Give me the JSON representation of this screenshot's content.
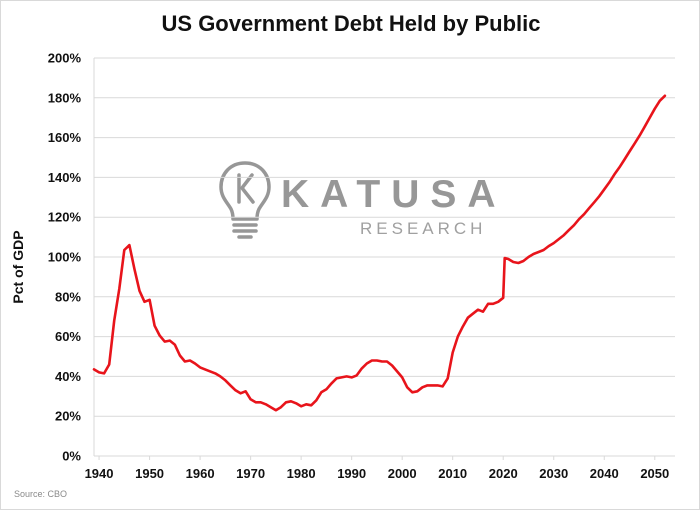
{
  "chart_data": {
    "type": "line",
    "title": "US Government Debt Held by Public",
    "ylabel": "Pct of GDP",
    "xlabel": "",
    "source": "Source: CBO",
    "xlim": [
      1939,
      2054
    ],
    "ylim": [
      0,
      200
    ],
    "x_ticks": [
      1940,
      1950,
      1960,
      1970,
      1980,
      1990,
      2000,
      2010,
      2020,
      2030,
      2040,
      2050
    ],
    "y_ticks": [
      {
        "value": 0,
        "label": "0%"
      },
      {
        "value": 20,
        "label": "20%"
      },
      {
        "value": 40,
        "label": "40%"
      },
      {
        "value": 60,
        "label": "60%"
      },
      {
        "value": 80,
        "label": "80%"
      },
      {
        "value": 100,
        "label": "100%"
      },
      {
        "value": 120,
        "label": "120%"
      },
      {
        "value": 140,
        "label": "140%"
      },
      {
        "value": 160,
        "label": "160%"
      },
      {
        "value": 180,
        "label": "180%"
      },
      {
        "value": 200,
        "label": "200%"
      }
    ],
    "grid": true,
    "legend": "none",
    "series": [
      {
        "color": "#e8141b",
        "points": [
          [
            1939,
            43.5
          ],
          [
            1940,
            42
          ],
          [
            1941,
            41.5
          ],
          [
            1942,
            46
          ],
          [
            1943,
            68
          ],
          [
            1944,
            84
          ],
          [
            1945,
            103.5
          ],
          [
            1946,
            106
          ],
          [
            1947,
            94
          ],
          [
            1948,
            83
          ],
          [
            1949,
            77.5
          ],
          [
            1950,
            78.5
          ],
          [
            1951,
            65.5
          ],
          [
            1952,
            60.5
          ],
          [
            1953,
            57.5
          ],
          [
            1954,
            58
          ],
          [
            1955,
            56
          ],
          [
            1956,
            50.5
          ],
          [
            1957,
            47.5
          ],
          [
            1958,
            48
          ],
          [
            1959,
            46.5
          ],
          [
            1960,
            44.5
          ],
          [
            1961,
            43.5
          ],
          [
            1962,
            42.5
          ],
          [
            1963,
            41.5
          ],
          [
            1964,
            40
          ],
          [
            1965,
            38
          ],
          [
            1966,
            35.5
          ],
          [
            1967,
            33
          ],
          [
            1968,
            31.5
          ],
          [
            1969,
            32.5
          ],
          [
            1970,
            28.5
          ],
          [
            1971,
            27
          ],
          [
            1972,
            27
          ],
          [
            1973,
            26
          ],
          [
            1974,
            24.5
          ],
          [
            1975,
            23
          ],
          [
            1976,
            24.5
          ],
          [
            1977,
            27
          ],
          [
            1978,
            27.5
          ],
          [
            1979,
            26.5
          ],
          [
            1980,
            25
          ],
          [
            1981,
            26
          ],
          [
            1982,
            25.5
          ],
          [
            1983,
            28
          ],
          [
            1984,
            32
          ],
          [
            1985,
            33.5
          ],
          [
            1986,
            36.5
          ],
          [
            1987,
            39
          ],
          [
            1988,
            39.5
          ],
          [
            1989,
            40
          ],
          [
            1990,
            39.5
          ],
          [
            1991,
            40.5
          ],
          [
            1992,
            44
          ],
          [
            1993,
            46.5
          ],
          [
            1994,
            48
          ],
          [
            1995,
            48
          ],
          [
            1996,
            47.5
          ],
          [
            1997,
            47.5
          ],
          [
            1998,
            45.5
          ],
          [
            1999,
            42.5
          ],
          [
            2000,
            39.5
          ],
          [
            2001,
            34.5
          ],
          [
            2002,
            32
          ],
          [
            2003,
            32.5
          ],
          [
            2004,
            34.5
          ],
          [
            2005,
            35.5
          ],
          [
            2006,
            35.5
          ],
          [
            2007,
            35.5
          ],
          [
            2008,
            35
          ],
          [
            2009,
            39
          ],
          [
            2010,
            52
          ],
          [
            2011,
            60
          ],
          [
            2012,
            65
          ],
          [
            2013,
            69.5
          ],
          [
            2014,
            71.5
          ],
          [
            2015,
            73.5
          ],
          [
            2016,
            72.5
          ],
          [
            2017,
            76.5
          ],
          [
            2018,
            76.5
          ],
          [
            2019,
            77.5
          ],
          [
            2020,
            79.5
          ],
          [
            2020.3,
            99.5
          ],
          [
            2021,
            99
          ],
          [
            2022,
            97.5
          ],
          [
            2023,
            97
          ],
          [
            2024,
            98
          ],
          [
            2025,
            100
          ],
          [
            2026,
            101.5
          ],
          [
            2027,
            102.5
          ],
          [
            2028,
            103.5
          ],
          [
            2029,
            105.5
          ],
          [
            2030,
            107
          ],
          [
            2031,
            109
          ],
          [
            2032,
            111
          ],
          [
            2033,
            113.5
          ],
          [
            2034,
            116
          ],
          [
            2035,
            119
          ],
          [
            2036,
            121.5
          ],
          [
            2037,
            124.5
          ],
          [
            2038,
            127.5
          ],
          [
            2039,
            130.5
          ],
          [
            2040,
            134
          ],
          [
            2041,
            137.5
          ],
          [
            2042,
            141.5
          ],
          [
            2043,
            145
          ],
          [
            2044,
            149
          ],
          [
            2045,
            153
          ],
          [
            2046,
            157
          ],
          [
            2047,
            161
          ],
          [
            2048,
            165.5
          ],
          [
            2049,
            170
          ],
          [
            2050,
            174.5
          ],
          [
            2051,
            178.5
          ],
          [
            2052,
            181
          ]
        ]
      }
    ]
  },
  "watermark": {
    "brand": "KATUSA",
    "sub": "RESEARCH",
    "logo_icon": "lightbulb-k-icon",
    "color": "#8c8c8c"
  }
}
